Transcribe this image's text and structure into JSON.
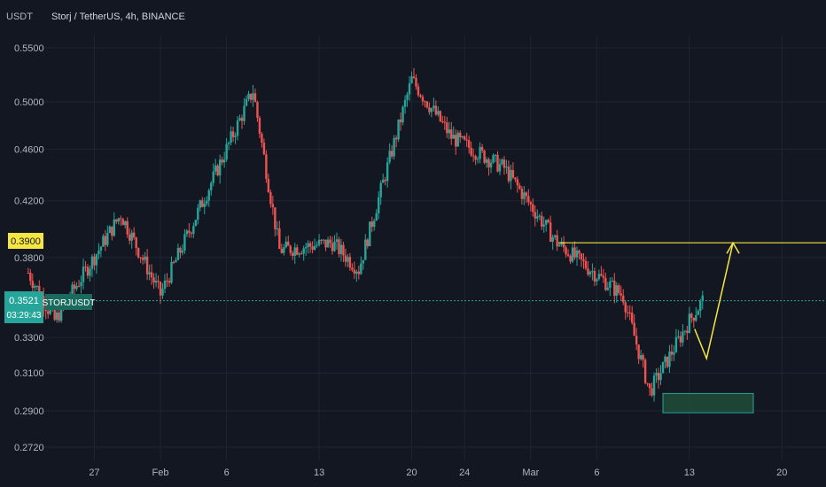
{
  "header": {
    "currency_label": "USDT",
    "title": "Storj / TetherUS, 4h, BINANCE"
  },
  "chart_data": {
    "type": "candlestick",
    "title": "Storj / TetherUS, 4h, BINANCE",
    "ylabel": "USDT",
    "y_scale": "log",
    "ylim": [
      0.2635,
      0.585
    ],
    "y_ticks": [
      "0.5500",
      "0.5000",
      "0.4600",
      "0.4200",
      "0.3800",
      "0.3300",
      "0.3100",
      "0.2900",
      "0.2720"
    ],
    "x_ticks": [
      "27",
      "Feb",
      "6",
      "13",
      "20",
      "24",
      "Mar",
      "6",
      "13",
      "20"
    ],
    "colors": {
      "up": "#26a69a",
      "down": "#ef5350",
      "annotation": "#f5e642",
      "price_line": "#26a69a",
      "zone_fill": "#1e4d3a",
      "zone_border": "#26a69a"
    },
    "price_labels": {
      "level": "0.3900",
      "last_price": "0.3521",
      "countdown": "03:29:43",
      "symbol": "STORJUSDT"
    },
    "key_points": [
      {
        "date": "Jan 22",
        "close": 0.37
      },
      {
        "date": "Jan 24",
        "close": 0.34
      },
      {
        "date": "Jan 29",
        "close": 0.41
      },
      {
        "date": "Feb 1",
        "close": 0.356
      },
      {
        "date": "Feb 8",
        "close": 0.51
      },
      {
        "date": "Feb 10",
        "close": 0.385
      },
      {
        "date": "Feb 14",
        "close": 0.39
      },
      {
        "date": "Feb 16",
        "close": 0.372
      },
      {
        "date": "Feb 20",
        "close": 0.52
      },
      {
        "date": "Feb 23",
        "close": 0.47
      },
      {
        "date": "Feb 27",
        "close": 0.445
      },
      {
        "date": "Mar 3",
        "close": 0.39
      },
      {
        "date": "Mar 8",
        "close": 0.355
      },
      {
        "date": "Mar 10",
        "close": 0.3
      },
      {
        "date": "Mar 13",
        "close": 0.34
      },
      {
        "date": "Mar 14",
        "close": 0.3521
      }
    ],
    "annotations": {
      "resistance_level": 0.39,
      "demand_zone": {
        "from": 0.289,
        "to": 0.299
      },
      "projection_path": [
        0.335,
        0.318,
        0.39
      ]
    }
  }
}
